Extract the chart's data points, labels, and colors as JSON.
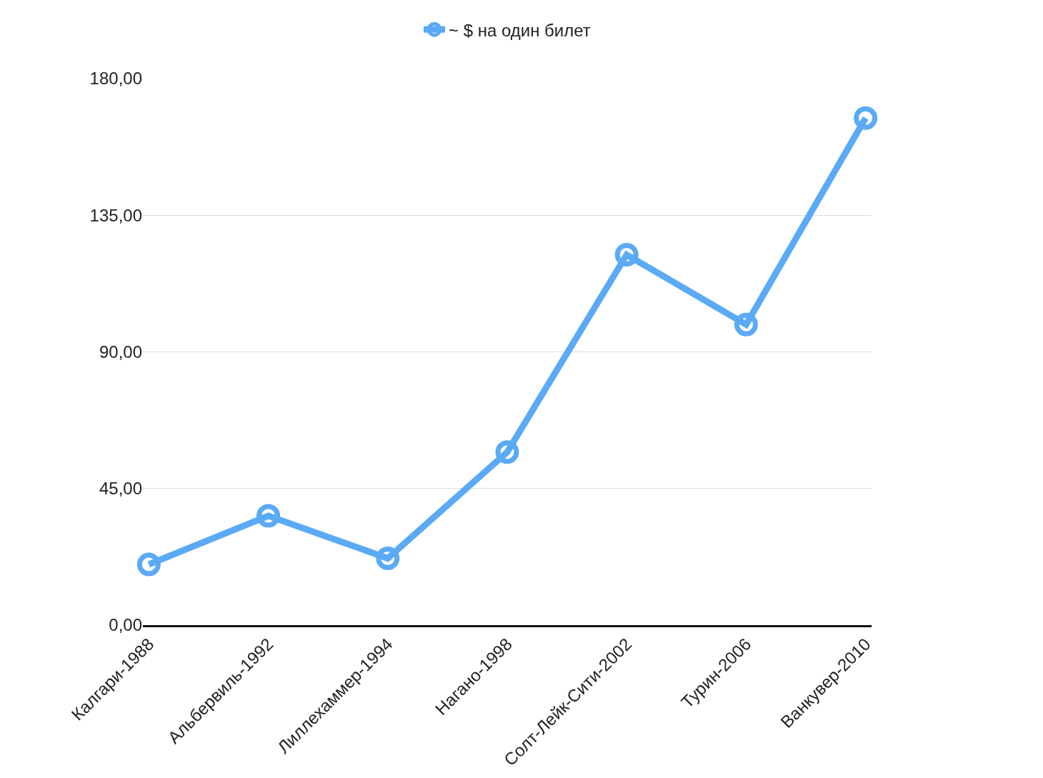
{
  "chart_data": {
    "type": "line",
    "categories": [
      "Калгари-1988",
      "Альбервиль-1992",
      "Лиллехаммер-1994",
      "Нагано-1998",
      "Солт-Лейк-Сити-2002",
      "Турин-2006",
      "Ванкувер-2010"
    ],
    "series": [
      {
        "name": "~ $ на один билет",
        "color": "#5aaaf5",
        "values": [
          20,
          36,
          22,
          57,
          122,
          99,
          167
        ]
      }
    ],
    "ylim": [
      0,
      180
    ],
    "yticks": [
      {
        "value": 0,
        "label": "0,00"
      },
      {
        "value": 45,
        "label": "45,00"
      },
      {
        "value": 90,
        "label": "90,00"
      },
      {
        "value": 135,
        "label": "135,00"
      },
      {
        "value": 180,
        "label": "180,00"
      }
    ],
    "grid": "y",
    "legend": "top",
    "marker": "circle",
    "line_style": "solid"
  }
}
